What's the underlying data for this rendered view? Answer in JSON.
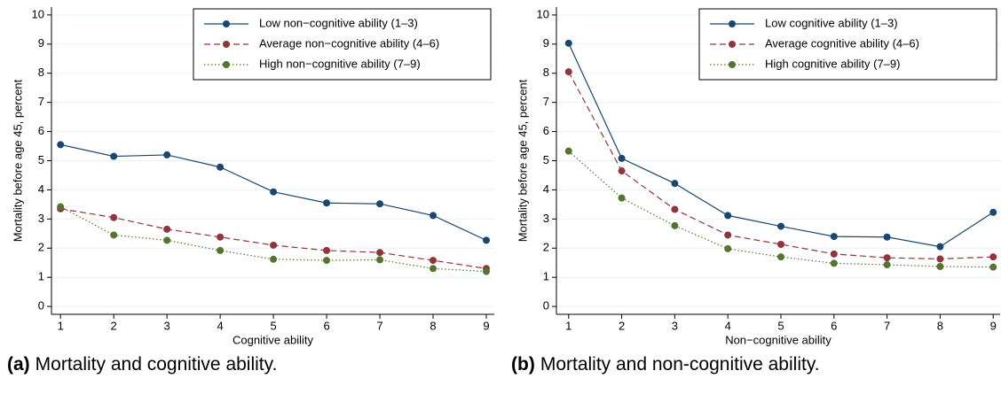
{
  "chart_data": [
    {
      "type": "line",
      "xlabel": "Cognitive ability",
      "ylabel": "Mortality before age 45, percent",
      "caption_label": "(a)",
      "caption": "Mortality and cognitive ability.",
      "x": [
        1,
        2,
        3,
        4,
        5,
        6,
        7,
        8,
        9
      ],
      "series": [
        {
          "name": "Low non−cognitive ability (1–3)",
          "color": "#1a476f",
          "line_style": "solid",
          "values": [
            5.55,
            5.15,
            5.2,
            4.78,
            3.93,
            3.55,
            3.52,
            3.12,
            2.27
          ]
        },
        {
          "name": "Average non−cognitive ability (4–6)",
          "color": "#90353b",
          "line_style": "dashed",
          "values": [
            3.35,
            3.05,
            2.65,
            2.38,
            2.1,
            1.92,
            1.85,
            1.58,
            1.3
          ]
        },
        {
          "name": "High non−cognitive ability (7–9)",
          "color": "#55752f",
          "line_style": "dotted",
          "values": [
            3.42,
            2.45,
            2.27,
            1.92,
            1.62,
            1.58,
            1.6,
            1.3,
            1.2
          ]
        }
      ],
      "xlim": [
        0.83,
        9.15
      ],
      "xticks": [
        1,
        2,
        3,
        4,
        5,
        6,
        7,
        8,
        9
      ],
      "ylim": [
        -0.27,
        10.27
      ],
      "yticks": [
        0,
        1,
        2,
        3,
        4,
        5,
        6,
        7,
        8,
        9,
        10
      ],
      "grid": true,
      "legend": "top-right"
    },
    {
      "type": "line",
      "xlabel": "Non−cognitive ability",
      "ylabel": "Mortality before age 45, percent",
      "caption_label": "(b)",
      "caption": "Mortality and non-cognitive ability.",
      "x": [
        1,
        2,
        3,
        4,
        5,
        6,
        7,
        8,
        9
      ],
      "series": [
        {
          "name": "Low cognitive ability (1–3)",
          "color": "#1a476f",
          "line_style": "solid",
          "values": [
            9.03,
            5.08,
            4.22,
            3.12,
            2.75,
            2.4,
            2.38,
            2.05,
            3.23
          ]
        },
        {
          "name": "Average cognitive ability (4–6)",
          "color": "#90353b",
          "line_style": "dashed",
          "values": [
            8.05,
            4.65,
            3.33,
            2.45,
            2.13,
            1.8,
            1.67,
            1.63,
            1.7
          ]
        },
        {
          "name": "High cognitive ability (7–9)",
          "color": "#55752f",
          "line_style": "dotted",
          "values": [
            5.33,
            3.72,
            2.77,
            1.98,
            1.7,
            1.48,
            1.43,
            1.37,
            1.35
          ]
        }
      ],
      "xlim": [
        0.77,
        9.13
      ],
      "xticks": [
        1,
        2,
        3,
        4,
        5,
        6,
        7,
        8,
        9
      ],
      "ylim": [
        -0.27,
        10.27
      ],
      "yticks": [
        0,
        1,
        2,
        3,
        4,
        5,
        6,
        7,
        8,
        9,
        10
      ],
      "grid": true,
      "legend": "top-right"
    }
  ]
}
